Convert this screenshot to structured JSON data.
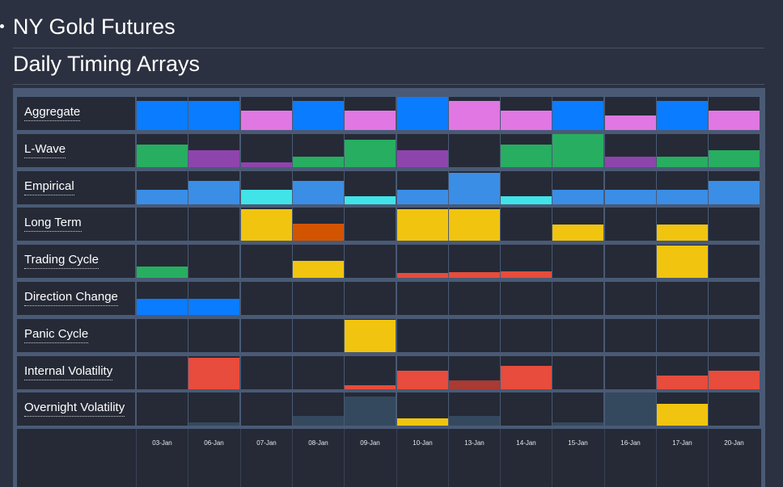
{
  "header": {
    "title": "NY Gold Futures",
    "subtitle": "Daily Timing Arrays"
  },
  "colors": {
    "blue": "#0a7cff",
    "lightblue": "#3a8ee6",
    "magenta": "#e077e3",
    "green": "#27ae60",
    "purple": "#8e44ad",
    "cyan": "#40e3e8",
    "yellow": "#f1c40f",
    "orange": "#d35400",
    "red": "#e74c3c",
    "darkred": "#a93a34",
    "slate": "#34495e"
  },
  "chart_data": {
    "type": "heatmap",
    "title": "Daily Timing Arrays",
    "value_scale": "fraction of cell height (0-1)",
    "dates": [
      "03-Jan",
      "06-Jan",
      "07-Jan",
      "08-Jan",
      "09-Jan",
      "10-Jan",
      "13-Jan",
      "14-Jan",
      "15-Jan",
      "16-Jan",
      "17-Jan",
      "20-Jan"
    ],
    "rows": [
      {
        "label": "Aggregate",
        "values": [
          0.88,
          0.88,
          0.59,
          0.88,
          0.59,
          1.0,
          0.88,
          0.59,
          0.88,
          0.45,
          0.88,
          0.59
        ],
        "colors": [
          "blue",
          "blue",
          "magenta",
          "blue",
          "magenta",
          "blue",
          "magenta",
          "magenta",
          "blue",
          "magenta",
          "blue",
          "magenta"
        ]
      },
      {
        "label": "L-Wave",
        "values": [
          0.68,
          0.5,
          0.14,
          0.32,
          0.82,
          0.5,
          0,
          0.68,
          1.0,
          0.32,
          0.32,
          0.5
        ],
        "colors": [
          "green",
          "purple",
          "purple",
          "green",
          "green",
          "purple",
          "green",
          "green",
          "green",
          "purple",
          "green",
          "green"
        ]
      },
      {
        "label": "Empirical",
        "values": [
          0.45,
          0.71,
          0.45,
          0.71,
          0.24,
          0.45,
          0.95,
          0.24,
          0.45,
          0.45,
          0.45,
          0.71
        ],
        "colors": [
          "lightblue",
          "lightblue",
          "cyan",
          "lightblue",
          "cyan",
          "lightblue",
          "lightblue",
          "cyan",
          "lightblue",
          "lightblue",
          "lightblue",
          "lightblue"
        ]
      },
      {
        "label": "Long Term",
        "values": [
          0,
          0,
          0.95,
          0.5,
          0,
          0.95,
          0.95,
          0,
          0.48,
          0,
          0.48,
          0
        ],
        "colors": [
          "yellow",
          "yellow",
          "yellow",
          "orange",
          "yellow",
          "yellow",
          "yellow",
          "yellow",
          "yellow",
          "yellow",
          "yellow",
          "yellow"
        ]
      },
      {
        "label": "Trading Cycle",
        "values": [
          0.33,
          0,
          0,
          0.5,
          0,
          0.14,
          0.17,
          0.2,
          0,
          0,
          0.98,
          0
        ],
        "colors": [
          "green",
          "yellow",
          "yellow",
          "yellow",
          "yellow",
          "red",
          "red",
          "red",
          "red",
          "red",
          "yellow",
          "red"
        ]
      },
      {
        "label": "Direction Change",
        "values": [
          0.48,
          0.48,
          0,
          0,
          0,
          0,
          0,
          0,
          0,
          0,
          0,
          0
        ],
        "colors": [
          "blue",
          "blue",
          "blue",
          "blue",
          "blue",
          "blue",
          "blue",
          "blue",
          "blue",
          "blue",
          "blue",
          "blue"
        ]
      },
      {
        "label": "Panic Cycle",
        "values": [
          0,
          0,
          0,
          0,
          0.98,
          0,
          0,
          0,
          0,
          0,
          0,
          0
        ],
        "colors": [
          "yellow",
          "yellow",
          "yellow",
          "yellow",
          "yellow",
          "yellow",
          "yellow",
          "yellow",
          "yellow",
          "yellow",
          "yellow",
          "yellow"
        ]
      },
      {
        "label": "Internal Volatility",
        "values": [
          0,
          0.96,
          0,
          0,
          0.12,
          0.55,
          0.26,
          0.7,
          0,
          0,
          0.41,
          0.55
        ],
        "colors": [
          "red",
          "red",
          "red",
          "red",
          "red",
          "red",
          "darkred",
          "red",
          "red",
          "red",
          "red",
          "red"
        ]
      },
      {
        "label": "Overnight Volatility",
        "values": [
          0,
          0.1,
          0,
          0.3,
          0.88,
          0.22,
          0.3,
          0,
          0.1,
          1.0,
          0.65,
          0
        ],
        "colors": [
          "slate",
          "slate",
          "slate",
          "slate",
          "slate",
          "yellow",
          "slate",
          "slate",
          "slate",
          "slate",
          "yellow",
          "slate"
        ]
      }
    ]
  }
}
